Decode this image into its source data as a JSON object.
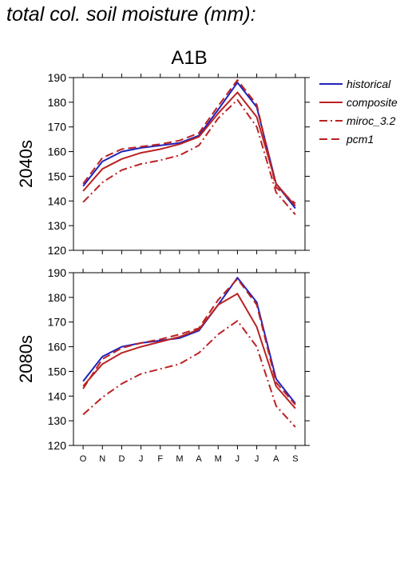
{
  "title": "total col. soil moisture (mm):",
  "scenario": "A1B",
  "legend": [
    {
      "name": "historical",
      "color": "#2222bb",
      "dash": "solid"
    },
    {
      "name": "composite",
      "color": "#bb2222",
      "dash": "solid"
    },
    {
      "name": "miroc_3.2",
      "color": "#bb2222",
      "dash": "dashdot"
    },
    {
      "name": "pcm1",
      "color": "#bb2222",
      "dash": "dashed"
    }
  ],
  "chart_data": [
    {
      "type": "line",
      "panel": "2040s",
      "categories": [
        "O",
        "N",
        "D",
        "J",
        "F",
        "M",
        "A",
        "M",
        "J",
        "J",
        "A",
        "S"
      ],
      "ylim": [
        120,
        190
      ],
      "yticks": [
        120,
        130,
        140,
        150,
        160,
        170,
        180,
        190
      ],
      "series": [
        {
          "name": "historical",
          "values": [
            146,
            156,
            160,
            161.5,
            162.5,
            163.5,
            166.5,
            177,
            188,
            178,
            147,
            137
          ]
        },
        {
          "name": "composite",
          "values": [
            144,
            153,
            157,
            159.5,
            161,
            163,
            166,
            175.5,
            184,
            174,
            147,
            138
          ]
        },
        {
          "name": "miroc_3.2",
          "values": [
            139.5,
            147.5,
            152.5,
            155,
            156.5,
            158.5,
            162.5,
            173.5,
            181,
            170,
            143.5,
            134.5
          ]
        },
        {
          "name": "pcm1",
          "values": [
            147,
            157.5,
            161,
            162,
            163,
            164.5,
            167.5,
            178.5,
            189,
            179,
            145.5,
            139
          ]
        }
      ]
    },
    {
      "type": "line",
      "panel": "2080s",
      "categories": [
        "O",
        "N",
        "D",
        "J",
        "F",
        "M",
        "A",
        "M",
        "J",
        "J",
        "A",
        "S"
      ],
      "ylim": [
        120,
        190
      ],
      "yticks": [
        120,
        130,
        140,
        150,
        160,
        170,
        180,
        190
      ],
      "series": [
        {
          "name": "historical",
          "values": [
            146,
            156,
            160,
            161.5,
            162.5,
            163.5,
            166.5,
            177,
            188,
            178,
            147,
            137
          ]
        },
        {
          "name": "composite",
          "values": [
            144,
            153,
            157.5,
            160,
            162,
            164,
            167,
            177,
            181.5,
            168,
            144,
            135
          ]
        },
        {
          "name": "miroc_3.2",
          "values": [
            132.5,
            139.5,
            145,
            149,
            151,
            153,
            157.5,
            165,
            170.5,
            160,
            136,
            127.5
          ]
        },
        {
          "name": "pcm1",
          "values": [
            143,
            155,
            159.5,
            161.5,
            163,
            165,
            167.5,
            179,
            187.5,
            177,
            145.5,
            136.5
          ]
        }
      ]
    }
  ]
}
